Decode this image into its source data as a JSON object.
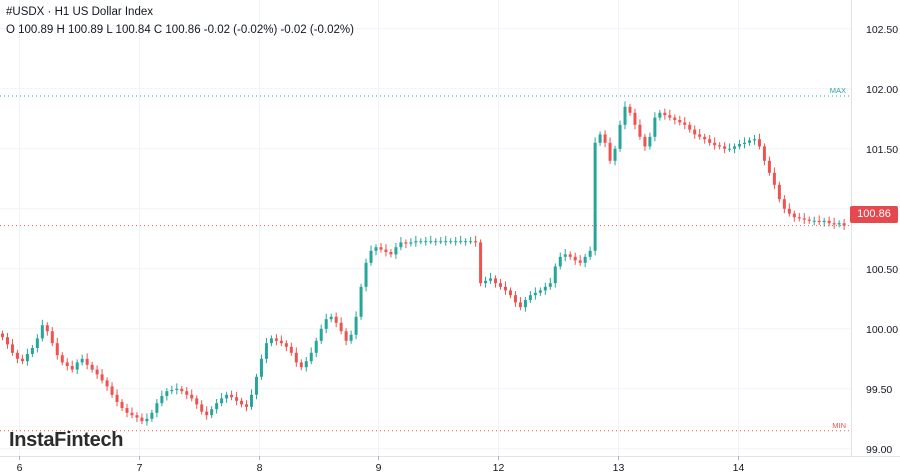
{
  "header": {
    "title": "#USDX · H1 US Dollar Index",
    "ohlc": "O 100.89 H 100.89 L 100.84 C 100.86 -0.02 (-0.02%) -0.02 (-0.02%)"
  },
  "brand": {
    "logo_text": "InstaFintech"
  },
  "colors": {
    "up": "#26a69a",
    "down": "#ef5350",
    "max_line": "#26a69a",
    "min_line": "#ef5350",
    "last_price": "#e5484d"
  },
  "chart_data": {
    "type": "candlestick",
    "title": "#USDX · H1 US Dollar Index",
    "xlabel": "",
    "ylabel": "",
    "ylim": [
      98.94,
      102.74
    ],
    "y_ticks": [
      "102.50",
      "102.00",
      "101.50",
      "101.00",
      "100.50",
      "100.00",
      "99.50",
      "99.00"
    ],
    "x_ticks": [
      "6",
      "7",
      "8",
      "9",
      "12",
      "13",
      "14"
    ],
    "grid": true,
    "max_label": "MAX",
    "max_value": 101.94,
    "min_label": "MIN",
    "min_value": 99.15,
    "last_price": "100.86",
    "closes": [
      99.93,
      99.87,
      99.8,
      99.75,
      99.73,
      99.79,
      99.84,
      99.92,
      100.03,
      99.98,
      99.88,
      99.78,
      99.72,
      99.69,
      99.66,
      99.72,
      99.75,
      99.7,
      99.66,
      99.62,
      99.57,
      99.52,
      99.45,
      99.39,
      99.34,
      99.3,
      99.28,
      99.26,
      99.23,
      99.25,
      99.3,
      99.38,
      99.44,
      99.48,
      99.49,
      99.5,
      99.48,
      99.45,
      99.42,
      99.37,
      99.31,
      99.28,
      99.33,
      99.38,
      99.42,
      99.45,
      99.43,
      99.4,
      99.37,
      99.35,
      99.45,
      99.6,
      99.75,
      99.88,
      99.92,
      99.9,
      99.88,
      99.85,
      99.8,
      99.72,
      99.68,
      99.73,
      99.8,
      99.9,
      100.0,
      100.08,
      100.1,
      100.05,
      99.98,
      99.9,
      99.95,
      100.1,
      100.35,
      100.55,
      100.65,
      100.68,
      100.66,
      100.64,
      100.62,
      100.68,
      100.72,
      100.71,
      100.72,
      100.73,
      100.73,
      100.73,
      100.73,
      100.73,
      100.73,
      100.73,
      100.73,
      100.73,
      100.73,
      100.73,
      100.73,
      100.72,
      100.38,
      100.4,
      100.42,
      100.38,
      100.35,
      100.32,
      100.28,
      100.22,
      100.18,
      100.24,
      100.28,
      100.3,
      100.32,
      100.35,
      100.38,
      100.52,
      100.6,
      100.62,
      100.6,
      100.57,
      100.55,
      100.6,
      100.65,
      101.55,
      101.62,
      101.55,
      101.4,
      101.5,
      101.7,
      101.85,
      101.8,
      101.7,
      101.6,
      101.52,
      101.6,
      101.76,
      101.8,
      101.78,
      101.76,
      101.74,
      101.72,
      101.7,
      101.66,
      101.62,
      101.6,
      101.58,
      101.55,
      101.53,
      101.52,
      101.5,
      101.5,
      101.52,
      101.54,
      101.55,
      101.57,
      101.58,
      101.52,
      101.4,
      101.3,
      101.2,
      101.08,
      101.0,
      100.96,
      100.93,
      100.92,
      100.91,
      100.9,
      100.9,
      100.89,
      100.9,
      100.88,
      100.87,
      100.88,
      100.86
    ]
  }
}
